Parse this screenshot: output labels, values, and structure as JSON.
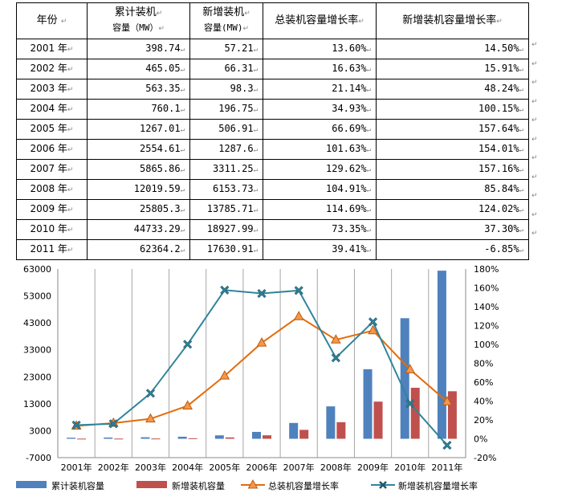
{
  "table": {
    "headers": {
      "year": "年份",
      "cumulative_line1": "累计装机",
      "cumulative_line2": "容量（MW）",
      "new_line1": "新增装机",
      "new_line2": "容量(MW)",
      "total_growth": "总装机容量增长率",
      "new_growth": "新增装机容量增长率"
    },
    "rows": [
      {
        "year": "2001 年",
        "cumulative": "398.74",
        "new": "57.21",
        "total_growth": "13.60%",
        "new_growth": "14.50%"
      },
      {
        "year": "2002 年",
        "cumulative": "465.05",
        "new": "66.31",
        "total_growth": "16.63%",
        "new_growth": "15.91%"
      },
      {
        "year": "2003 年",
        "cumulative": "563.35",
        "new": "98.3",
        "total_growth": "21.14%",
        "new_growth": "48.24%"
      },
      {
        "year": "2004 年",
        "cumulative": "760.1",
        "new": "196.75",
        "total_growth": "34.93%",
        "new_growth": "100.15%"
      },
      {
        "year": "2005 年",
        "cumulative": "1267.01",
        "new": "506.91",
        "total_growth": "66.69%",
        "new_growth": "157.64%"
      },
      {
        "year": "2006 年",
        "cumulative": "2554.61",
        "new": "1287.6",
        "total_growth": "101.63%",
        "new_growth": "154.01%"
      },
      {
        "year": "2007 年",
        "cumulative": "5865.86",
        "new": "3311.25",
        "total_growth": "129.62%",
        "new_growth": "157.16%"
      },
      {
        "year": "2008 年",
        "cumulative": "12019.59",
        "new": "6153.73",
        "total_growth": "104.91%",
        "new_growth": "85.84%"
      },
      {
        "year": "2009 年",
        "cumulative": "25805.3",
        "new": "13785.71",
        "total_growth": "114.69%",
        "new_growth": "124.02%"
      },
      {
        "year": "2010 年",
        "cumulative": "44733.29",
        "new": "18927.99",
        "total_growth": "73.35%",
        "new_growth": "37.30%"
      },
      {
        "year": "2011 年",
        "cumulative": "62364.2",
        "new": "17630.91",
        "total_growth": "39.41%",
        "new_growth": "-6.85%"
      }
    ]
  },
  "chart_data": {
    "type": "bar",
    "categories": [
      "2001年",
      "2002年",
      "2003年",
      "2004年",
      "2005年",
      "2006年",
      "2007年",
      "2008年",
      "2009年",
      "2010年",
      "2011年"
    ],
    "left_axis": {
      "min": -7000,
      "max": 63000,
      "ticks": [
        "63000",
        "53000",
        "43000",
        "33000",
        "23000",
        "13000",
        "3000",
        "-7000"
      ]
    },
    "right_axis": {
      "min": -20,
      "max": 180,
      "ticks": [
        "180%",
        "160%",
        "140%",
        "120%",
        "100%",
        "80%",
        "60%",
        "40%",
        "20%",
        "0%",
        "-20%"
      ]
    },
    "series": [
      {
        "name": "累计装机容量",
        "type": "bar",
        "axis": "left",
        "color": "#4F81BD",
        "values": [
          398.74,
          465.05,
          563.35,
          760.1,
          1267.01,
          2554.61,
          5865.86,
          12019.59,
          25805.3,
          44733.29,
          62364.2
        ]
      },
      {
        "name": "新增装机容量",
        "type": "bar",
        "axis": "left",
        "color": "#C0504D",
        "values": [
          57.21,
          66.31,
          98.3,
          196.75,
          506.91,
          1287.6,
          3311.25,
          6153.73,
          13785.71,
          18927.99,
          17630.91
        ]
      },
      {
        "name": "总装机容量增长率",
        "type": "line",
        "axis": "right",
        "color": "#E46C0A",
        "marker": "triangle",
        "values": [
          13.6,
          16.63,
          21.14,
          34.93,
          66.69,
          101.63,
          129.62,
          104.91,
          114.69,
          73.35,
          39.41
        ]
      },
      {
        "name": "新增装机容量增长率",
        "type": "line",
        "axis": "right",
        "color": "#31849B",
        "marker": "x",
        "values": [
          14.5,
          15.91,
          48.24,
          100.15,
          157.64,
          154.01,
          157.16,
          85.84,
          124.02,
          37.3,
          -6.85
        ]
      }
    ],
    "grid": "vertical",
    "legend": "bottom"
  },
  "marks": {
    "para": "↵"
  }
}
